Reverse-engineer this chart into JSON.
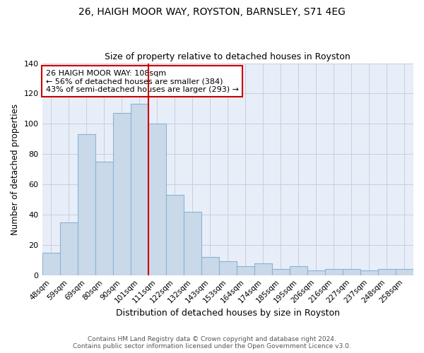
{
  "title1": "26, HAIGH MOOR WAY, ROYSTON, BARNSLEY, S71 4EG",
  "title2": "Size of property relative to detached houses in Royston",
  "xlabel": "Distribution of detached houses by size in Royston",
  "ylabel": "Number of detached properties",
  "categories": [
    "48sqm",
    "59sqm",
    "69sqm",
    "80sqm",
    "90sqm",
    "101sqm",
    "111sqm",
    "122sqm",
    "132sqm",
    "143sqm",
    "153sqm",
    "164sqm",
    "174sqm",
    "185sqm",
    "195sqm",
    "206sqm",
    "216sqm",
    "227sqm",
    "237sqm",
    "248sqm",
    "258sqm"
  ],
  "values": [
    15,
    35,
    93,
    75,
    107,
    113,
    100,
    53,
    42,
    12,
    9,
    6,
    8,
    4,
    6,
    3,
    4,
    4,
    3,
    4,
    4
  ],
  "bar_color": "#c9d9ea",
  "bar_edge_color": "#8ab4d4",
  "grid_color": "#c8cfe0",
  "bg_color": "#e8eef8",
  "red_line_index": 6,
  "annotation_line1": "26 HAIGH MOOR WAY: 108sqm",
  "annotation_line2": "← 56% of detached houses are smaller (384)",
  "annotation_line3": "43% of semi-detached houses are larger (293) →",
  "annotation_box_color": "#cc0000",
  "ylim": [
    0,
    140
  ],
  "yticks": [
    0,
    20,
    40,
    60,
    80,
    100,
    120,
    140
  ],
  "footer1": "Contains HM Land Registry data © Crown copyright and database right 2024.",
  "footer2": "Contains public sector information licensed under the Open Government Licence v3.0."
}
